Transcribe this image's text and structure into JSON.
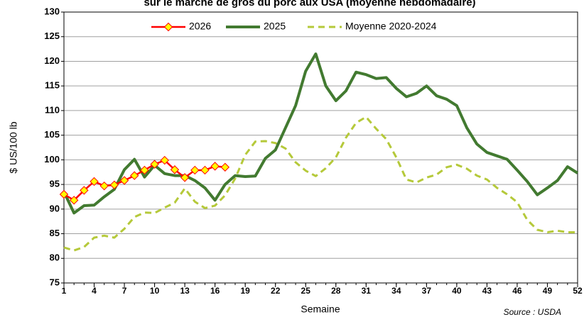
{
  "chart_data": {
    "type": "line",
    "title": "sur le marché de gros du porc aux USA (moyenne hebdomadaire)",
    "x_label": "Semaine",
    "y_label": "$ US/100 lb",
    "source": "Source : USDA",
    "xlim": [
      1,
      52
    ],
    "xticks": [
      1,
      4,
      7,
      10,
      13,
      16,
      19,
      22,
      25,
      28,
      31,
      34,
      37,
      40,
      43,
      46,
      49,
      52
    ],
    "ylim": [
      75,
      130
    ],
    "yticks": [
      75,
      80,
      85,
      90,
      95,
      100,
      105,
      110,
      115,
      120,
      125,
      130
    ],
    "grid": true,
    "legend": "top",
    "series": [
      {
        "name": "2026",
        "color": "#ff0000",
        "marker": "diamond",
        "marker_color": "#ffff00",
        "x": [
          1,
          2,
          3,
          4,
          5,
          6,
          7,
          8,
          9,
          10,
          11,
          12,
          13,
          14,
          15,
          16,
          17
        ],
        "values": [
          93,
          91.8,
          93.8,
          95.6,
          94.7,
          94.9,
          95.8,
          96.8,
          97.9,
          99.1,
          99.9,
          98,
          96.4,
          97.9,
          97.9,
          98.7,
          98.5
        ]
      },
      {
        "name": "2025",
        "color": "#427a30",
        "x": [
          1,
          2,
          3,
          4,
          5,
          6,
          7,
          8,
          9,
          10,
          11,
          12,
          13,
          14,
          15,
          16,
          17,
          18,
          19,
          20,
          21,
          22,
          23,
          24,
          25,
          26,
          27,
          28,
          29,
          30,
          31,
          32,
          33,
          34,
          35,
          36,
          37,
          38,
          39,
          40,
          41,
          42,
          43,
          44,
          45,
          46,
          47,
          48,
          49,
          50,
          51,
          52
        ],
        "values": [
          93.5,
          89.2,
          90.7,
          90.8,
          92.5,
          94,
          98,
          100.1,
          96.5,
          98.9,
          97.2,
          96.8,
          96.8,
          95.8,
          94.3,
          91.8,
          95,
          96.8,
          96.6,
          96.7,
          100.3,
          102,
          106.5,
          111,
          118,
          121.5,
          115,
          112,
          114,
          117.8,
          117.3,
          116.5,
          116.7,
          114.5,
          112.8,
          113.5,
          115,
          113,
          112.3,
          111,
          106.5,
          103.2,
          101.5,
          100.8,
          100.1,
          97.9,
          95.6,
          92.9,
          94.3,
          95.8,
          98.6,
          97.3
        ]
      },
      {
        "name": "Moyenne 2020-2024",
        "color": "#b5c93a",
        "dashed": true,
        "x": [
          1,
          2,
          3,
          4,
          5,
          6,
          7,
          8,
          9,
          10,
          11,
          12,
          13,
          14,
          15,
          16,
          17,
          18,
          19,
          20,
          21,
          22,
          23,
          24,
          25,
          26,
          27,
          28,
          29,
          30,
          31,
          32,
          33,
          34,
          35,
          36,
          37,
          38,
          39,
          40,
          41,
          42,
          43,
          44,
          45,
          46,
          47,
          48,
          49,
          50,
          51,
          52
        ],
        "values": [
          82.2,
          81.6,
          82.3,
          84.2,
          84.6,
          84.2,
          86,
          88.4,
          89.3,
          89.2,
          90.3,
          91.3,
          94.2,
          91.5,
          90.2,
          90.7,
          92.8,
          96.2,
          101,
          103.7,
          103.8,
          103.4,
          102.3,
          99.5,
          97.8,
          96.7,
          98.3,
          100.5,
          104.5,
          107.5,
          108.7,
          106.3,
          104.2,
          100.5,
          96,
          95.4,
          96.4,
          97,
          98.5,
          99,
          98.2,
          96.8,
          96,
          94.3,
          93,
          91.4,
          87.8,
          85.8,
          85.3,
          85.6,
          85.3,
          85.3
        ]
      }
    ]
  }
}
